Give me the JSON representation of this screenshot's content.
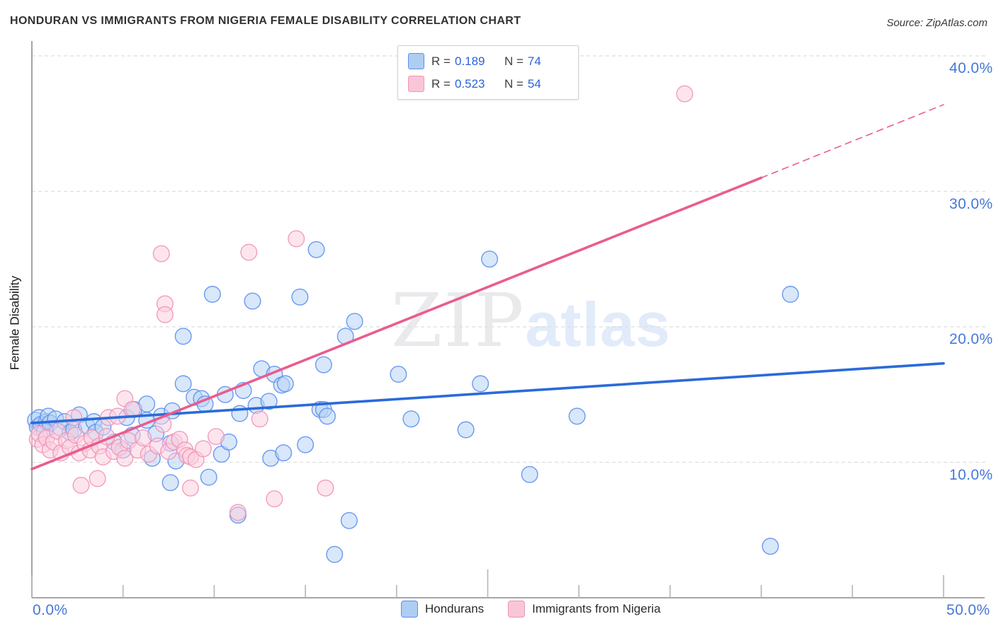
{
  "header": {
    "title": "HONDURAN VS IMMIGRANTS FROM NIGERIA FEMALE DISABILITY CORRELATION CHART",
    "source": "Source: ZipAtlas.com"
  },
  "legend_box": {
    "rows": [
      {
        "series": "Hondurans",
        "r_label": "R =",
        "r_value": "0.189",
        "n_label": "N =",
        "n_value": "74",
        "swatch_fill": "#aecdf2",
        "swatch_border": "#5b8ff2"
      },
      {
        "series": "Immigrants from Nigeria",
        "r_label": "R =",
        "r_value": "0.523",
        "n_label": "N =",
        "n_value": "54",
        "swatch_fill": "#f9c6d8",
        "swatch_border": "#f293b6"
      }
    ]
  },
  "chart_data": {
    "type": "scatter",
    "title": "HONDURAN VS IMMIGRANTS FROM NIGERIA FEMALE DISABILITY CORRELATION CHART",
    "xlabel": "",
    "ylabel": "Female Disability",
    "xlim": [
      0,
      50
    ],
    "ylim": [
      0,
      41.5
    ],
    "grid": "horizontal-dashed",
    "legend_position": "top-right-box and bottom-center",
    "x_ticks": {
      "values": [
        0,
        5,
        10,
        15,
        20,
        25,
        30,
        35,
        40,
        45,
        50
      ],
      "first_label": "0.0%",
      "last_label": "50.0%"
    },
    "y_gridlines": [
      {
        "value": 10,
        "label": "10.0%"
      },
      {
        "value": 20,
        "label": "20.0%"
      },
      {
        "value": 30,
        "label": "30.0%"
      },
      {
        "value": 40,
        "label": "40.0%"
      }
    ],
    "watermark": {
      "part1": "ZIP",
      "part2": "atlas"
    },
    "series": [
      {
        "name": "Hondurans",
        "r": 0.189,
        "n": 74,
        "stroke": "#5b8ff2",
        "fill": "#b8d3f4",
        "points": [
          [
            0.2,
            13.1
          ],
          [
            0.3,
            12.6
          ],
          [
            0.4,
            13.3
          ],
          [
            0.5,
            12.8
          ],
          [
            0.7,
            12.3
          ],
          [
            0.8,
            13.0
          ],
          [
            0.9,
            13.4
          ],
          [
            1.0,
            12.9
          ],
          [
            1.3,
            13.2
          ],
          [
            1.6,
            12.5
          ],
          [
            1.8,
            13.0
          ],
          [
            2.1,
            12.2
          ],
          [
            2.3,
            12.4
          ],
          [
            2.6,
            13.5
          ],
          [
            3.0,
            12.7
          ],
          [
            3.4,
            13.0
          ],
          [
            3.5,
            12.2
          ],
          [
            3.9,
            12.6
          ],
          [
            4.5,
            11.5
          ],
          [
            5.0,
            10.9
          ],
          [
            5.2,
            13.3
          ],
          [
            5.5,
            12.0
          ],
          [
            5.6,
            13.9
          ],
          [
            6.3,
            14.3
          ],
          [
            6.3,
            13.1
          ],
          [
            6.6,
            10.3
          ],
          [
            6.8,
            12.1
          ],
          [
            7.1,
            13.4
          ],
          [
            7.6,
            11.4
          ],
          [
            7.6,
            8.5
          ],
          [
            7.7,
            13.8
          ],
          [
            7.9,
            10.1
          ],
          [
            8.3,
            19.3
          ],
          [
            8.3,
            15.8
          ],
          [
            8.9,
            14.8
          ],
          [
            9.3,
            14.7
          ],
          [
            9.5,
            14.3
          ],
          [
            9.7,
            8.9
          ],
          [
            9.9,
            22.4
          ],
          [
            10.4,
            10.6
          ],
          [
            10.6,
            15.0
          ],
          [
            10.8,
            11.5
          ],
          [
            11.3,
            6.1
          ],
          [
            11.4,
            13.6
          ],
          [
            11.6,
            15.3
          ],
          [
            12.1,
            21.9
          ],
          [
            12.3,
            14.2
          ],
          [
            12.6,
            16.9
          ],
          [
            13.0,
            14.5
          ],
          [
            13.1,
            10.3
          ],
          [
            13.3,
            16.5
          ],
          [
            13.7,
            15.7
          ],
          [
            13.8,
            10.7
          ],
          [
            13.9,
            15.8
          ],
          [
            14.7,
            22.2
          ],
          [
            15.0,
            11.3
          ],
          [
            15.6,
            25.7
          ],
          [
            15.8,
            13.9
          ],
          [
            16.0,
            17.2
          ],
          [
            16.0,
            13.9
          ],
          [
            16.2,
            13.4
          ],
          [
            16.6,
            3.2
          ],
          [
            17.2,
            19.3
          ],
          [
            17.4,
            5.7
          ],
          [
            17.7,
            20.4
          ],
          [
            20.1,
            16.5
          ],
          [
            20.8,
            13.2
          ],
          [
            23.8,
            12.4
          ],
          [
            24.6,
            15.8
          ],
          [
            25.1,
            25.0
          ],
          [
            27.3,
            9.1
          ],
          [
            29.9,
            13.4
          ],
          [
            40.5,
            3.8
          ],
          [
            41.6,
            22.4
          ]
        ]
      },
      {
        "name": "Immigrants from Nigeria",
        "r": 0.523,
        "n": 54,
        "stroke": "#f193b7",
        "fill": "#fbd0de",
        "points": [
          [
            0.3,
            11.7
          ],
          [
            0.4,
            12.1
          ],
          [
            0.6,
            11.3
          ],
          [
            0.8,
            11.8
          ],
          [
            1.0,
            10.9
          ],
          [
            1.2,
            11.5
          ],
          [
            1.4,
            12.3
          ],
          [
            1.6,
            10.7
          ],
          [
            1.9,
            11.6
          ],
          [
            2.1,
            11.1
          ],
          [
            2.3,
            13.3
          ],
          [
            2.4,
            12.0
          ],
          [
            2.6,
            10.7
          ],
          [
            2.7,
            8.3
          ],
          [
            2.9,
            11.4
          ],
          [
            3.2,
            10.9
          ],
          [
            3.3,
            11.8
          ],
          [
            3.6,
            8.8
          ],
          [
            3.7,
            11.2
          ],
          [
            3.9,
            10.4
          ],
          [
            4.1,
            11.9
          ],
          [
            4.2,
            13.3
          ],
          [
            4.5,
            10.8
          ],
          [
            4.7,
            13.4
          ],
          [
            4.8,
            11.1
          ],
          [
            5.1,
            14.7
          ],
          [
            5.1,
            10.3
          ],
          [
            5.3,
            11.6
          ],
          [
            5.5,
            13.9
          ],
          [
            5.8,
            10.9
          ],
          [
            6.1,
            11.8
          ],
          [
            6.4,
            10.6
          ],
          [
            6.9,
            11.2
          ],
          [
            7.1,
            25.4
          ],
          [
            7.2,
            12.8
          ],
          [
            7.3,
            21.7
          ],
          [
            7.3,
            20.9
          ],
          [
            7.5,
            10.8
          ],
          [
            7.8,
            11.5
          ],
          [
            8.1,
            11.7
          ],
          [
            8.4,
            10.9
          ],
          [
            8.5,
            10.5
          ],
          [
            8.7,
            10.4
          ],
          [
            8.7,
            8.1
          ],
          [
            9.0,
            10.2
          ],
          [
            9.4,
            11.0
          ],
          [
            10.1,
            11.9
          ],
          [
            11.3,
            6.3
          ],
          [
            11.9,
            25.5
          ],
          [
            12.5,
            13.2
          ],
          [
            13.3,
            7.3
          ],
          [
            14.5,
            26.5
          ],
          [
            16.1,
            8.1
          ],
          [
            35.8,
            37.2
          ]
        ]
      }
    ],
    "trend_lines": [
      {
        "series": "Hondurans",
        "color": "#2a6bd8",
        "x1": 0,
        "y1": 12.9,
        "x2": 50,
        "y2": 17.3,
        "dash": false
      },
      {
        "series": "Immigrants from Nigeria",
        "color": "#ea5c8f",
        "x1": 0,
        "y1": 9.5,
        "x2": 40,
        "y2": 31.0,
        "dash": false
      },
      {
        "series": "Immigrants from Nigeria",
        "color": "#ea5c8f",
        "x1": 40,
        "y1": 31.0,
        "x2": 50,
        "y2": 36.4,
        "dash": true
      }
    ]
  },
  "bottom_axis": {
    "left_label": "0.0%",
    "right_label": "50.0%"
  }
}
